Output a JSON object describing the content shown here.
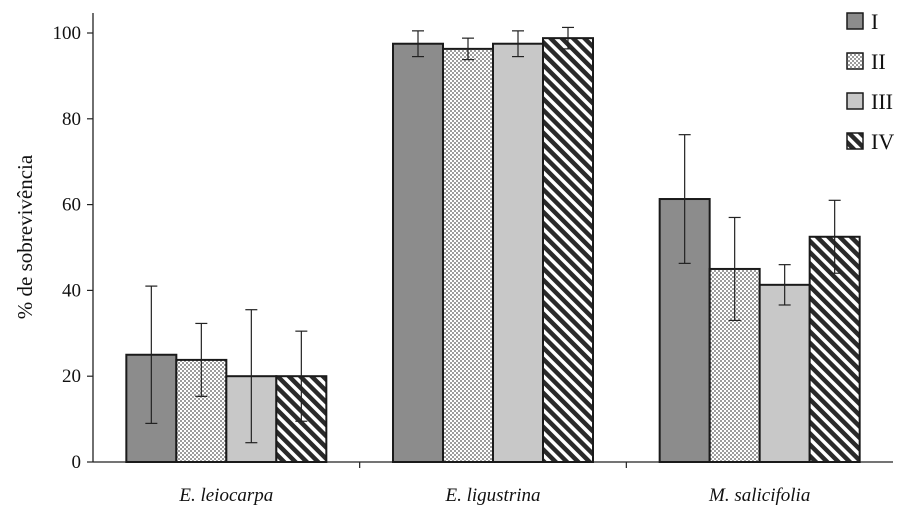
{
  "chart_data": {
    "type": "bar",
    "ylabel": "% de sobrevivência",
    "xlabel": "",
    "ylim": [
      0,
      100
    ],
    "yticks": [
      0,
      20,
      40,
      60,
      80,
      100
    ],
    "ytick_labels": [
      "0",
      "20",
      "40",
      "60",
      "80",
      "100"
    ],
    "categories": [
      "E. leiocarpa",
      "E. ligustrina",
      "M. salicifolia"
    ],
    "grid": false,
    "legend_position": "top-right",
    "series": [
      {
        "name": "I",
        "pattern": "solid-dark",
        "values": [
          25,
          97.5,
          61.3
        ],
        "error": [
          16,
          3,
          15
        ]
      },
      {
        "name": "II",
        "pattern": "dots",
        "values": [
          23.8,
          96.3,
          45
        ],
        "error": [
          8.5,
          2.5,
          12
        ]
      },
      {
        "name": "III",
        "pattern": "solid-light",
        "values": [
          20,
          97.5,
          41.3
        ],
        "error": [
          15.5,
          3,
          4.7
        ]
      },
      {
        "name": "IV",
        "pattern": "diagonal",
        "values": [
          20,
          98.8,
          52.5
        ],
        "error": [
          10.5,
          2.5,
          8.5
        ]
      }
    ],
    "colors": {
      "dark": "#8c8c8c",
      "light": "#c8c8c8",
      "edge": "#1a1a1a"
    }
  }
}
